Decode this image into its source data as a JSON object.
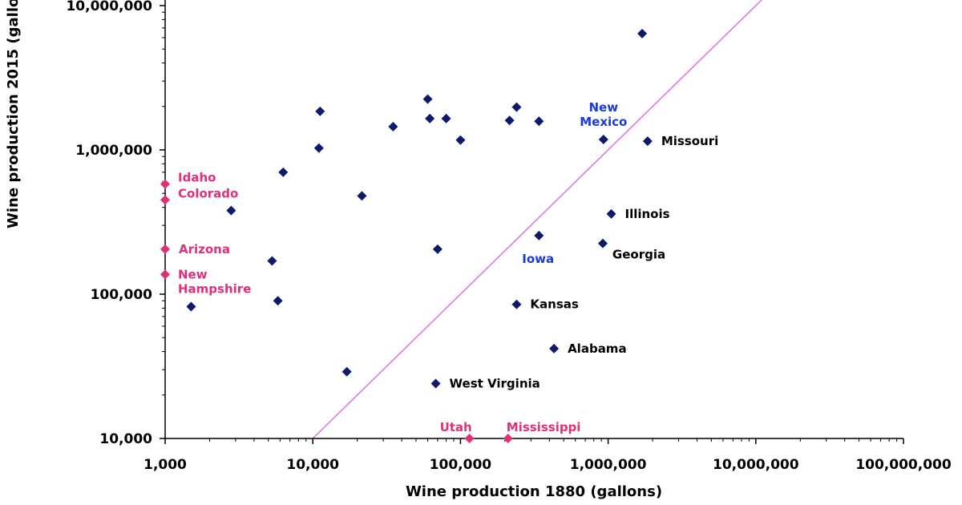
{
  "chart_data": {
    "type": "scatter",
    "title": "",
    "xlabel": "Wine production 1880 (gallons)",
    "ylabel": "Wine production 2015 (gallons)",
    "xscale": "log",
    "yscale": "log",
    "xlim": [
      1000,
      100000000
    ],
    "ylim": [
      10000,
      10000000
    ],
    "x_ticks": [
      1000,
      10000,
      100000,
      1000000,
      10000000,
      100000000
    ],
    "x_tick_labels": [
      "1,000",
      "10,000",
      "100,000",
      "1,000,000",
      "10,000,000",
      "100,000,000"
    ],
    "y_ticks": [
      10000,
      100000,
      1000000,
      10000000
    ],
    "y_tick_labels": [
      "10,000",
      "100,000",
      "1,000,000",
      "10,000,000"
    ],
    "grid": false,
    "colors": {
      "default": "#0d1a6b",
      "highlight": "#e0307a",
      "blue_label": "#1a3adb",
      "black_label": "#000000",
      "reference_line": "#e070e8"
    },
    "reference_line": {
      "equation": "y = x",
      "from": [
        10000,
        10000
      ],
      "to": [
        20000000,
        20000000
      ]
    },
    "points": [
      {
        "x": 1000,
        "y": 580000,
        "label": "Idaho",
        "color": "#e0307a",
        "label_color": "#e0307a",
        "label_pos": "right-up"
      },
      {
        "x": 1000,
        "y": 450000,
        "label": "Colorado",
        "color": "#e0307a",
        "label_color": "#e0307a",
        "label_pos": "right-up"
      },
      {
        "x": 1000,
        "y": 205000,
        "label": "Arizona",
        "color": "#e0307a",
        "label_color": "#e0307a",
        "label_pos": "right"
      },
      {
        "x": 1000,
        "y": 137000,
        "label": "New Hampshire",
        "label_lines": [
          "New",
          "Hampshire"
        ],
        "color": "#e0307a",
        "label_color": "#e0307a",
        "label_pos": "right-multi"
      },
      {
        "x": 115000,
        "y": 10000,
        "label": "Utah",
        "color": "#e0307a",
        "label_color": "#e0307a",
        "label_pos": "above"
      },
      {
        "x": 210000,
        "y": 10000,
        "label": "Mississippi",
        "color": "#e0307a",
        "label_color": "#e0307a",
        "label_pos": "above-right"
      },
      {
        "x": 1700000,
        "y": 6400000,
        "label": "",
        "color": "#0d1a6b"
      },
      {
        "x": 1850000,
        "y": 1150000,
        "label": "Missouri",
        "color": "#0d1a6b",
        "label_color": "#000000",
        "label_pos": "right"
      },
      {
        "x": 930000,
        "y": 1180000,
        "label": "New Mexico",
        "label_lines": [
          "New",
          "Mexico"
        ],
        "color": "#0d1a6b",
        "label_color": "#1a3adb",
        "label_pos": "above-left-multi"
      },
      {
        "x": 1050000,
        "y": 360000,
        "label": "Illinois",
        "color": "#0d1a6b",
        "label_color": "#000000",
        "label_pos": "right"
      },
      {
        "x": 920000,
        "y": 225000,
        "label": "Georgia",
        "color": "#0d1a6b",
        "label_color": "#000000",
        "label_pos": "right-down"
      },
      {
        "x": 340000,
        "y": 255000,
        "label": "Iowa",
        "color": "#0d1a6b",
        "label_color": "#1a3adb",
        "label_pos": "below-left"
      },
      {
        "x": 240000,
        "y": 85000,
        "label": "Kansas",
        "color": "#0d1a6b",
        "label_color": "#000000",
        "label_pos": "right"
      },
      {
        "x": 430000,
        "y": 42000,
        "label": "Alabama",
        "color": "#0d1a6b",
        "label_color": "#000000",
        "label_pos": "right"
      },
      {
        "x": 68000,
        "y": 24000,
        "label": "West Virginia",
        "color": "#0d1a6b",
        "label_color": "#000000",
        "label_pos": "right"
      },
      {
        "x": 11200,
        "y": 1850000,
        "label": "",
        "color": "#0d1a6b"
      },
      {
        "x": 11000,
        "y": 1030000,
        "label": "",
        "color": "#0d1a6b"
      },
      {
        "x": 6300,
        "y": 700000,
        "label": "",
        "color": "#0d1a6b"
      },
      {
        "x": 2800,
        "y": 380000,
        "label": "",
        "color": "#0d1a6b"
      },
      {
        "x": 21500,
        "y": 480000,
        "label": "",
        "color": "#0d1a6b"
      },
      {
        "x": 35000,
        "y": 1450000,
        "label": "",
        "color": "#0d1a6b"
      },
      {
        "x": 60000,
        "y": 2250000,
        "label": "",
        "color": "#0d1a6b"
      },
      {
        "x": 62000,
        "y": 1650000,
        "label": "",
        "color": "#0d1a6b"
      },
      {
        "x": 80000,
        "y": 1650000,
        "label": "",
        "color": "#0d1a6b"
      },
      {
        "x": 100000,
        "y": 1170000,
        "label": "",
        "color": "#0d1a6b"
      },
      {
        "x": 240000,
        "y": 1980000,
        "label": "",
        "color": "#0d1a6b"
      },
      {
        "x": 215000,
        "y": 1600000,
        "label": "",
        "color": "#0d1a6b"
      },
      {
        "x": 340000,
        "y": 1580000,
        "label": "",
        "color": "#0d1a6b"
      },
      {
        "x": 5300,
        "y": 170000,
        "label": "",
        "color": "#0d1a6b"
      },
      {
        "x": 70000,
        "y": 205000,
        "label": "",
        "color": "#0d1a6b"
      },
      {
        "x": 1500,
        "y": 82000,
        "label": "",
        "color": "#0d1a6b"
      },
      {
        "x": 5800,
        "y": 90000,
        "label": "",
        "color": "#0d1a6b"
      },
      {
        "x": 17000,
        "y": 29000,
        "label": "",
        "color": "#0d1a6b"
      }
    ]
  }
}
